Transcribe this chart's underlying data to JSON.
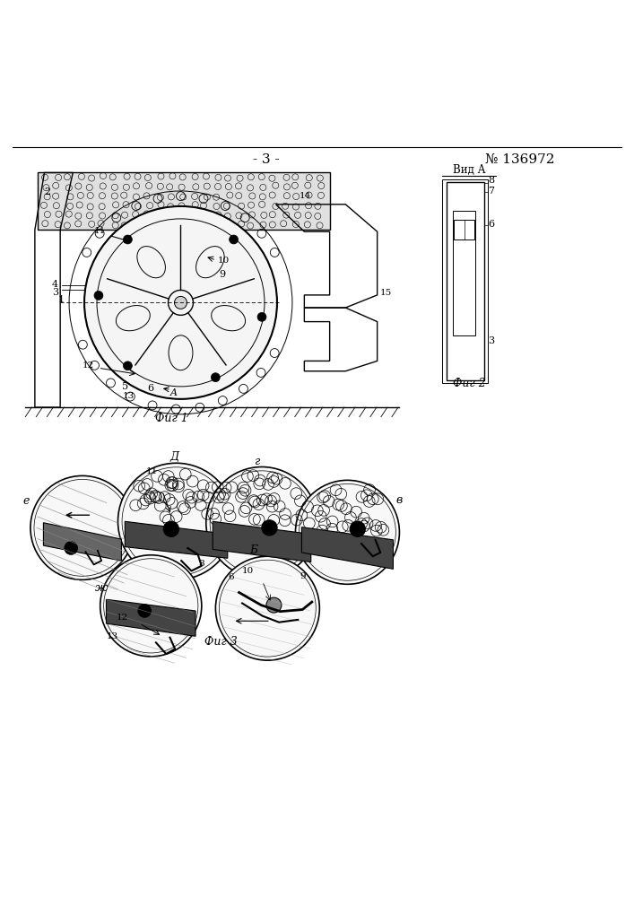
{
  "title_center": "- 3 -",
  "title_right": "№ 136972",
  "fig1_caption": "Фиг 1",
  "fig2_caption": "Фиг 2",
  "fig3_caption": "Фиг 3",
  "vid_a_label": "Вид А",
  "background": "#ffffff",
  "line_color": "#000000",
  "labels_e": "е",
  "labels_d": "Д",
  "labels_g": "г",
  "labels_v": "в",
  "labels_zh": "ж",
  "labels_b": "Б"
}
